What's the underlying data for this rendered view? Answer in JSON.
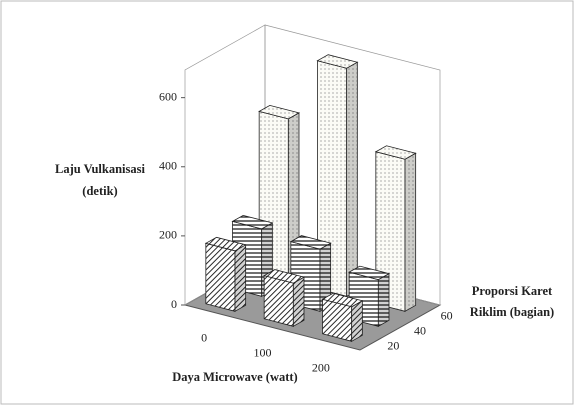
{
  "chart_data": {
    "type": "bar3d",
    "y_label": [
      "Laju Vulkanisasi",
      "(detik)"
    ],
    "x_label": "Daya Microwave (watt)",
    "depth_label": [
      "Proporsi Karet",
      "Riklim (bagian)"
    ],
    "categories": [
      "0",
      "100",
      "200"
    ],
    "series": [
      {
        "name": "20",
        "pattern": "diagonal",
        "values": [
          175,
          125,
          100
        ]
      },
      {
        "name": "40",
        "pattern": "horizontal",
        "values": [
          195,
          180,
          135
        ]
      },
      {
        "name": "60",
        "pattern": "dots",
        "values": [
          470,
          660,
          440
        ]
      }
    ],
    "ylim": [
      0,
      680
    ],
    "yticks": [
      0,
      200,
      400,
      600
    ],
    "grid": false
  }
}
